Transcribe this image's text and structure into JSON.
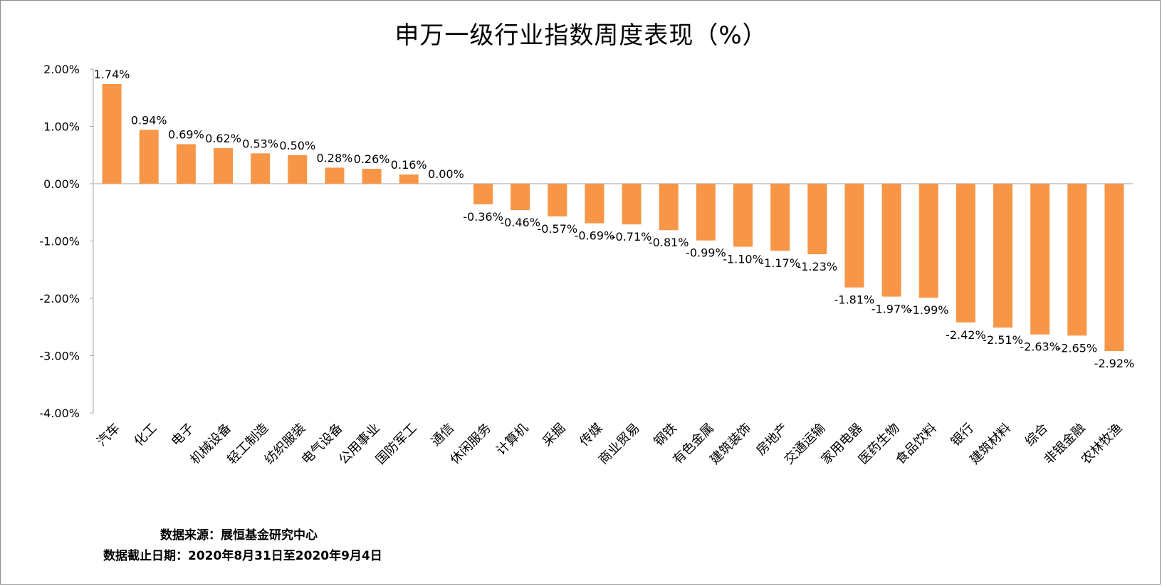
{
  "chart_data": {
    "type": "bar",
    "title": "申万一级行业指数周度表现（%）",
    "categories": [
      "汽车",
      "化工",
      "电子",
      "机械设备",
      "轻工制造",
      "纺织服装",
      "电气设备",
      "公用事业",
      "国防军工",
      "通信",
      "休闲服务",
      "计算机",
      "采掘",
      "传媒",
      "商业贸易",
      "钢铁",
      "有色金属",
      "建筑装饰",
      "房地产",
      "交通运输",
      "家用电器",
      "医药生物",
      "食品饮料",
      "银行",
      "建筑材料",
      "综合",
      "非银金融",
      "农林牧渔"
    ],
    "values": [
      1.74,
      0.94,
      0.69,
      0.62,
      0.53,
      0.5,
      0.28,
      0.26,
      0.16,
      0.0,
      -0.36,
      -0.46,
      -0.57,
      -0.69,
      -0.71,
      -0.81,
      -0.99,
      -1.1,
      -1.17,
      -1.23,
      -1.81,
      -1.97,
      -1.99,
      -2.42,
      -2.51,
      -2.63,
      -2.65,
      -2.92
    ],
    "data_labels": [
      "1.74%",
      "0.94%",
      "0.69%",
      "0.62%",
      "0.53%",
      "0.50%",
      "0.28%",
      "0.26%",
      "0.16%",
      "0.00%",
      "-0.36%",
      "-0.46%",
      "-0.57%",
      "-0.69%",
      "-0.71%",
      "-0.81%",
      "-0.99%",
      "-1.10%",
      "-1.17%",
      "-1.23%",
      "-1.81%",
      "-1.97%",
      "-1.99%",
      "-2.42%",
      "-2.51%",
      "-2.63%",
      "-2.65%",
      "-2.92%"
    ],
    "y_ticks": [
      2,
      1,
      0,
      -1,
      -2,
      -3,
      -4
    ],
    "y_tick_labels": [
      "2.00%",
      "1.00%",
      "0.00%",
      "-1.00%",
      "-2.00%",
      "-3.00%",
      "-4.00%"
    ],
    "ylim": [
      -4,
      2
    ],
    "xlabel": "",
    "ylabel": "",
    "grid": false,
    "bar_color": "#f79646"
  },
  "source_note": "数据来源：展恒基金研究中心",
  "date_note": "数据截止日期：2020年8月31日至2020年9月4日"
}
